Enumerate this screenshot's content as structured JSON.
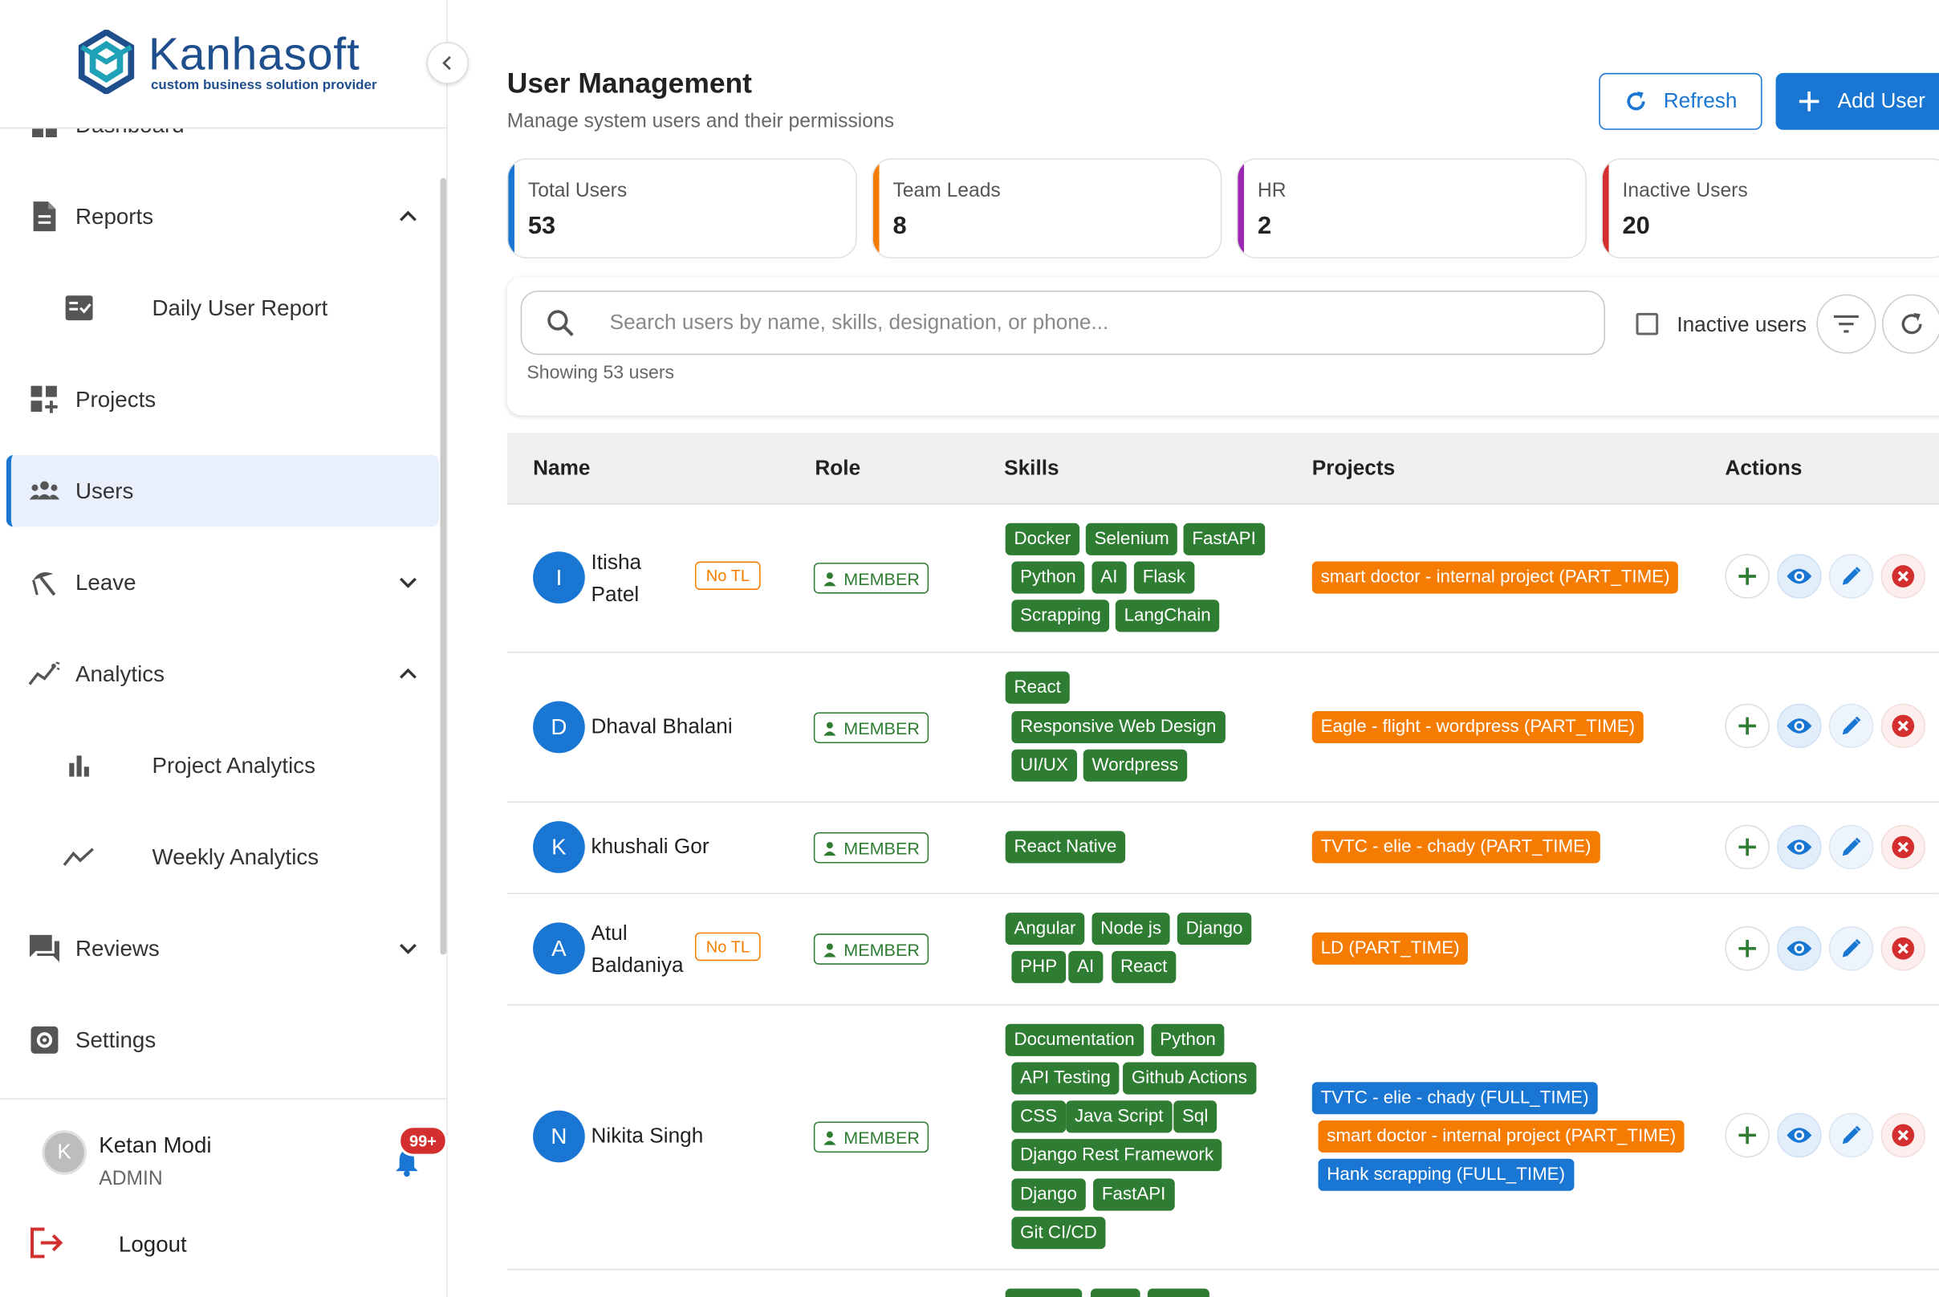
{
  "brand": {
    "name": "Kanhasoft",
    "tagline": "custom business solution provider"
  },
  "sidebar": {
    "items": [
      {
        "label": "Dashboard"
      },
      {
        "label": "Reports"
      },
      {
        "label": "Daily User Report"
      },
      {
        "label": "Projects"
      },
      {
        "label": "Users"
      },
      {
        "label": "Leave"
      },
      {
        "label": "Analytics"
      },
      {
        "label": "Project Analytics"
      },
      {
        "label": "Weekly Analytics"
      },
      {
        "label": "Reviews"
      },
      {
        "label": "Settings"
      }
    ],
    "user": {
      "initial": "K",
      "name": "Ketan Modi",
      "role": "ADMIN"
    },
    "notifications": "99+",
    "logout": "Logout"
  },
  "header": {
    "title": "User Management",
    "subtitle": "Manage system users and their permissions",
    "refresh_label": "Refresh",
    "add_label": "Add User"
  },
  "stats": [
    {
      "label": "Total Users",
      "value": "53",
      "color": "#1976d2"
    },
    {
      "label": "Team Leads",
      "value": "8",
      "color": "#f57c00"
    },
    {
      "label": "HR",
      "value": "2",
      "color": "#9c27b0"
    },
    {
      "label": "Inactive Users",
      "value": "20",
      "color": "#d32f2f"
    }
  ],
  "filters": {
    "search_placeholder": "Search users by name, skills, designation, or phone...",
    "showing": "Showing 53 users",
    "inactive_label": "Inactive users"
  },
  "table": {
    "columns": [
      "Name",
      "Role",
      "Skills",
      "Projects",
      "Actions"
    ],
    "rows": [
      {
        "initial": "I",
        "name_lines": [
          "Itisha",
          "Patel"
        ],
        "no_tl": "No TL",
        "role": "MEMBER",
        "skills": [
          "Docker",
          "Selenium",
          "FastAPI",
          "Python",
          "AI",
          "Flask",
          "Scrapping",
          "LangChain"
        ],
        "projects": [
          "smart doctor - internal project (PART_TIME)"
        ]
      },
      {
        "initial": "D",
        "name_lines": [
          "Dhaval Bhalani"
        ],
        "role": "MEMBER",
        "skills": [
          "React",
          "Responsive Web Design",
          "UI/UX",
          "Wordpress"
        ],
        "projects": [
          "Eagle - flight - wordpress (PART_TIME)"
        ]
      },
      {
        "initial": "K",
        "name_lines": [
          "khushali Gor"
        ],
        "role": "MEMBER",
        "skills": [
          "React Native"
        ],
        "projects": [
          "TVTC - elie - chady (PART_TIME)"
        ]
      },
      {
        "initial": "A",
        "name_lines": [
          "Atul",
          "Baldaniya"
        ],
        "no_tl": "No TL",
        "role": "MEMBER",
        "skills": [
          "Angular",
          "Node js",
          "Django",
          "PHP",
          "AI",
          "React"
        ],
        "projects": [
          "LD (PART_TIME)"
        ]
      },
      {
        "initial": "N",
        "name_lines": [
          "Nikita Singh"
        ],
        "role": "MEMBER",
        "skills": [
          "Documentation",
          "Python",
          "API Testing",
          "Github Actions",
          "CSS",
          "Java Script",
          "Sql",
          "Django Rest Framework",
          "Django",
          "FastAPI",
          "Git CI/CD"
        ],
        "projects": [
          "TVTC - elie - chady (FULL_TIME)",
          "smart doctor - internal project (PART_TIME)",
          "Hank scrapping (FULL_TIME)"
        ]
      }
    ]
  }
}
